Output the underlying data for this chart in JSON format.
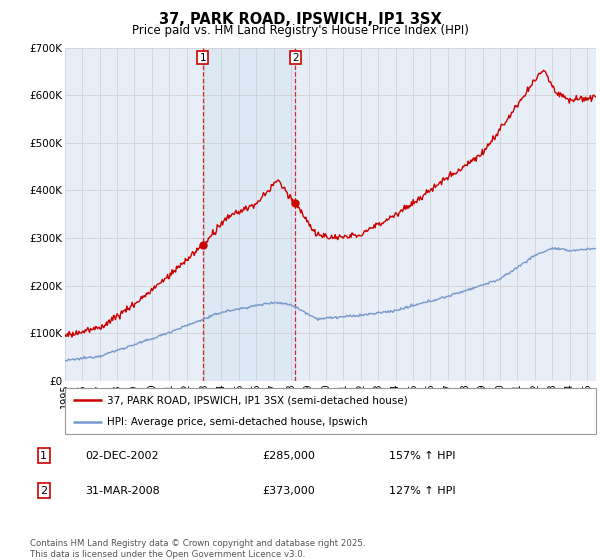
{
  "title": "37, PARK ROAD, IPSWICH, IP1 3SX",
  "subtitle": "Price paid vs. HM Land Registry's House Price Index (HPI)",
  "bg_color": "#e8eef8",
  "red_line_color": "#cc0000",
  "blue_line_color": "#7799cc",
  "vspan_color": "#dde8f5",
  "ylim": [
    0,
    700000
  ],
  "yticks": [
    0,
    100000,
    200000,
    300000,
    400000,
    500000,
    600000,
    700000
  ],
  "ytick_labels": [
    "£0",
    "£100K",
    "£200K",
    "£300K",
    "£400K",
    "£500K",
    "£600K",
    "£700K"
  ],
  "sale1_date": "02-DEC-2002",
  "sale1_year": 2002.92,
  "sale1_price": 285000,
  "sale1_label": "157% ↑ HPI",
  "sale2_date": "31-MAR-2008",
  "sale2_year": 2008.25,
  "sale2_price": 373000,
  "sale2_label": "127% ↑ HPI",
  "legend_line1": "37, PARK ROAD, IPSWICH, IP1 3SX (semi-detached house)",
  "legend_line2": "HPI: Average price, semi-detached house, Ipswich",
  "footer": "Contains HM Land Registry data © Crown copyright and database right 2025.\nThis data is licensed under the Open Government Licence v3.0.",
  "xmin": 1995,
  "xmax": 2025.5
}
